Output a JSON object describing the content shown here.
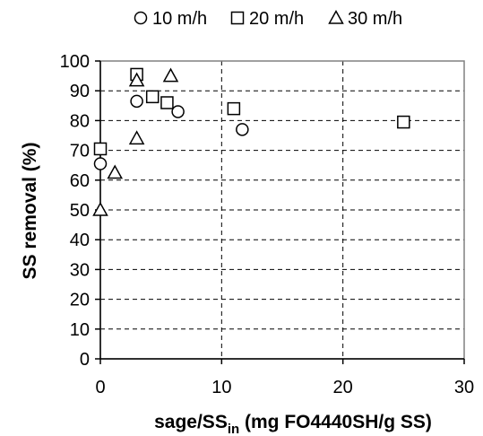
{
  "chart_data": {
    "type": "scatter",
    "xlabel": {
      "main": "sage/SS",
      "subscript": "in",
      "rest": " (mg FO4440SH/g SS)"
    },
    "ylabel": "SS removal (%)",
    "xlim": [
      0,
      30
    ],
    "ylim": [
      0,
      100
    ],
    "x_ticks": [
      "0",
      "10",
      "20",
      "30"
    ],
    "y_ticks": [
      "0",
      "10",
      "20",
      "30",
      "40",
      "50",
      "60",
      "70",
      "80",
      "90",
      "100"
    ],
    "grid": true,
    "legend_position": "top",
    "series": [
      {
        "name": "10 m/h",
        "marker": "circle",
        "points": [
          {
            "x": 0,
            "y": 65.5
          },
          {
            "x": 3.0,
            "y": 86.5
          },
          {
            "x": 6.4,
            "y": 83.0
          },
          {
            "x": 11.7,
            "y": 77.0
          }
        ]
      },
      {
        "name": "20 m/h",
        "marker": "square",
        "points": [
          {
            "x": 0,
            "y": 70.5
          },
          {
            "x": 3.0,
            "y": 95.5
          },
          {
            "x": 4.3,
            "y": 88.0
          },
          {
            "x": 5.5,
            "y": 86.0
          },
          {
            "x": 11.0,
            "y": 84.0
          },
          {
            "x": 25.0,
            "y": 79.5
          }
        ]
      },
      {
        "name": "30 m/h",
        "marker": "triangle",
        "points": [
          {
            "x": 0,
            "y": 50.0
          },
          {
            "x": 1.2,
            "y": 62.5
          },
          {
            "x": 3.0,
            "y": 74.0
          },
          {
            "x": 3.0,
            "y": 93.5
          },
          {
            "x": 5.8,
            "y": 95.0
          }
        ]
      }
    ]
  }
}
